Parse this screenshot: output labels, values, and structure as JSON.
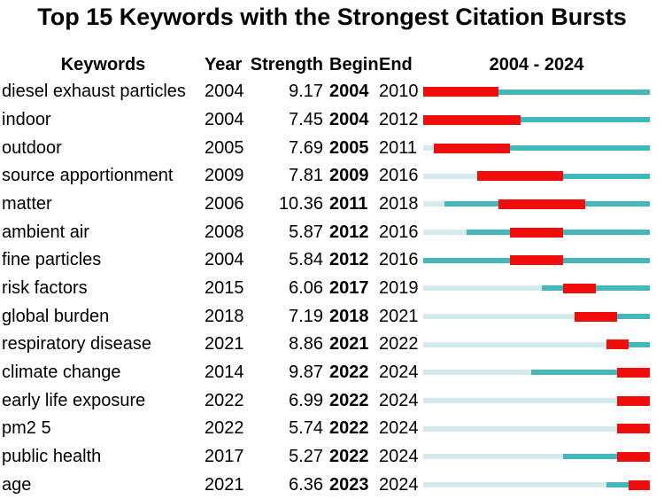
{
  "title": "Top 15 Keywords with the Strongest Citation Bursts",
  "columns": {
    "keywords": "Keywords",
    "year": "Year",
    "strength": "Strength",
    "begin": "Begin",
    "end": "End",
    "timeline": "2004 - 2024"
  },
  "colors": {
    "burst_red": "#f20d0d",
    "active_teal": "#44b7ba",
    "inactive_pale": "#d5ebeb"
  },
  "chart_data": {
    "type": "table",
    "title": "Top 15 Keywords with the Strongest Citation Bursts",
    "columns": [
      "Keywords",
      "Year",
      "Strength",
      "Begin",
      "End"
    ],
    "timeline_label": "2004 - 2024",
    "timeline_range": [
      2004,
      2024
    ],
    "legend_note": "pale segment = before keyword first appears, teal segment = keyword active, red segment = citation burst period (Begin to End inclusive)",
    "rows": [
      {
        "keyword": "diesel exhaust particles",
        "year": 2004,
        "strength": "9.17",
        "begin": 2004,
        "end": 2010
      },
      {
        "keyword": "indoor",
        "year": 2004,
        "strength": "7.45",
        "begin": 2004,
        "end": 2012
      },
      {
        "keyword": "outdoor",
        "year": 2005,
        "strength": "7.69",
        "begin": 2005,
        "end": 2011
      },
      {
        "keyword": "source apportionment",
        "year": 2009,
        "strength": "7.81",
        "begin": 2009,
        "end": 2016
      },
      {
        "keyword": "matter",
        "year": 2006,
        "strength": "10.36",
        "begin": 2011,
        "end": 2018
      },
      {
        "keyword": "ambient air",
        "year": 2008,
        "strength": "5.87",
        "begin": 2012,
        "end": 2016
      },
      {
        "keyword": "fine particles",
        "year": 2004,
        "strength": "5.84",
        "begin": 2012,
        "end": 2016
      },
      {
        "keyword": "risk factors",
        "year": 2015,
        "strength": "6.06",
        "begin": 2017,
        "end": 2019
      },
      {
        "keyword": "global burden",
        "year": 2018,
        "strength": "7.19",
        "begin": 2018,
        "end": 2021
      },
      {
        "keyword": "respiratory disease",
        "year": 2021,
        "strength": "8.86",
        "begin": 2021,
        "end": 2022
      },
      {
        "keyword": "climate change",
        "year": 2014,
        "strength": "9.87",
        "begin": 2022,
        "end": 2024
      },
      {
        "keyword": "early life exposure",
        "year": 2022,
        "strength": "6.99",
        "begin": 2022,
        "end": 2024
      },
      {
        "keyword": "pm2 5",
        "year": 2022,
        "strength": "5.74",
        "begin": 2022,
        "end": 2024
      },
      {
        "keyword": "public health",
        "year": 2017,
        "strength": "5.27",
        "begin": 2022,
        "end": 2024
      },
      {
        "keyword": "age",
        "year": 2021,
        "strength": "6.36",
        "begin": 2023,
        "end": 2024
      }
    ]
  }
}
